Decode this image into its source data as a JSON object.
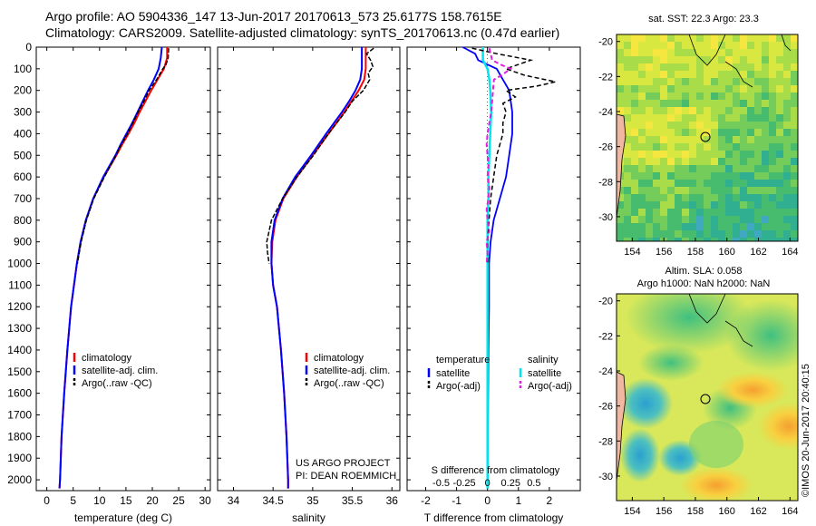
{
  "header": {
    "line1": "Argo profile: AO 5904336_147 13-Jun-2017 20170613_573 25.6177S 158.7615E",
    "line2": "Climatology: CARS2009. Satellite-adjusted climatology: synTS_20170613.nc (0.47d earlier)"
  },
  "depth_ticks": [
    "0",
    "100",
    "200",
    "300",
    "400",
    "500",
    "600",
    "700",
    "800",
    "900",
    "1000",
    "1100",
    "1200",
    "1300",
    "1400",
    "1500",
    "1600",
    "1700",
    "1800",
    "1900",
    "2000"
  ],
  "colors": {
    "climatology": "#ff0000",
    "satellite": "#0000ff",
    "argo": "#000000",
    "cyan": "#00e5ee",
    "magenta": "#e020e0"
  },
  "chart_data": [
    {
      "type": "line",
      "title": "temperature panel",
      "xlabel": "temperature (deg C)",
      "ylabel": "depth",
      "xlim": [
        -2,
        31
      ],
      "ylim": [
        2050,
        0
      ],
      "xticks": [
        "0",
        "5",
        "10",
        "15",
        "20",
        "25",
        "30"
      ],
      "legend": [
        "climatology",
        "satellite-adj. clim.",
        "Argo(..raw -QC)"
      ],
      "series": [
        {
          "name": "climatology",
          "depth": [
            0,
            50,
            100,
            150,
            200,
            250,
            300,
            350,
            400,
            450,
            500,
            600,
            700,
            800,
            900,
            1000,
            1200,
            1400,
            1600,
            1800,
            2000,
            2040
          ],
          "values": [
            22.8,
            22.8,
            22.2,
            21.0,
            19.8,
            18.7,
            17.6,
            16.6,
            15.5,
            14.3,
            13.2,
            10.8,
            8.8,
            7.4,
            6.4,
            5.7,
            4.6,
            3.9,
            3.3,
            2.8,
            2.5,
            2.4
          ]
        },
        {
          "name": "satellite",
          "depth": [
            0,
            50,
            100,
            150,
            200,
            250,
            300,
            350,
            400,
            450,
            500,
            600,
            700,
            800,
            900,
            1000,
            1200,
            1400,
            1600,
            1800,
            2000,
            2040
          ],
          "values": [
            21.8,
            21.6,
            21.2,
            20.3,
            19.2,
            18.2,
            17.2,
            16.2,
            15.1,
            14.0,
            13.0,
            10.7,
            8.8,
            7.4,
            6.4,
            5.7,
            4.6,
            3.9,
            3.3,
            2.8,
            2.5,
            2.4
          ]
        },
        {
          "name": "Argo",
          "depth": [
            5,
            50,
            80,
            100,
            150,
            200,
            250,
            300,
            350,
            400,
            450,
            500,
            600,
            700,
            800,
            900,
            1000
          ],
          "values": [
            23.1,
            23.0,
            22.6,
            22.0,
            20.8,
            19.4,
            18.4,
            17.3,
            16.3,
            15.3,
            14.1,
            13.1,
            10.9,
            8.9,
            7.5,
            6.5,
            5.8
          ]
        }
      ]
    },
    {
      "type": "line",
      "title": "salinity panel",
      "xlabel": "salinity",
      "ylabel": "depth",
      "xlim": [
        33.8,
        36.1
      ],
      "ylim": [
        2050,
        0
      ],
      "xticks": [
        "34",
        "34.5",
        "35",
        "35.5",
        "36"
      ],
      "legend": [
        "climatology",
        "satellite-adj. clim.",
        "Argo(..raw -QC)"
      ],
      "annotation": [
        "US ARGO PROJECT",
        "PI: DEAN ROEMMICH"
      ],
      "series": [
        {
          "name": "climatology",
          "depth": [
            0,
            50,
            100,
            150,
            200,
            250,
            300,
            400,
            500,
            600,
            700,
            800,
            900,
            1000,
            1100,
            1200,
            1400,
            1600,
            1800,
            2000,
            2040
          ],
          "values": [
            35.67,
            35.67,
            35.67,
            35.65,
            35.58,
            35.49,
            35.4,
            35.2,
            35.0,
            34.8,
            34.63,
            34.53,
            34.49,
            34.48,
            34.5,
            34.55,
            34.6,
            34.64,
            34.67,
            34.69,
            34.69
          ]
        },
        {
          "name": "satellite",
          "depth": [
            0,
            50,
            100,
            150,
            200,
            250,
            300,
            400,
            500,
            600,
            700,
            800,
            900,
            1000,
            1100,
            1200,
            1400,
            1600,
            1800,
            2000,
            2040
          ],
          "values": [
            35.62,
            35.62,
            35.62,
            35.6,
            35.54,
            35.46,
            35.37,
            35.17,
            34.98,
            34.78,
            34.62,
            34.52,
            34.48,
            34.48,
            34.5,
            34.55,
            34.6,
            34.64,
            34.67,
            34.69,
            34.69
          ]
        },
        {
          "name": "Argo",
          "depth": [
            5,
            30,
            60,
            90,
            120,
            150,
            200,
            250,
            300,
            400,
            500,
            600,
            700,
            800,
            850,
            900,
            950,
            1000
          ],
          "values": [
            35.77,
            35.68,
            35.73,
            35.76,
            35.7,
            35.72,
            35.64,
            35.5,
            35.41,
            35.2,
            35.01,
            34.8,
            34.62,
            34.48,
            34.45,
            34.42,
            34.43,
            34.45
          ]
        }
      ]
    },
    {
      "type": "line",
      "title": "difference panel",
      "xlabel": "T difference from climatology",
      "xlabel_top": "S difference from climatology",
      "ylabel": "depth",
      "xlim": [
        -2.6,
        3.0
      ],
      "ylim": [
        2050,
        0
      ],
      "xticks": [
        "-2",
        "-1",
        "0",
        "1",
        "2"
      ],
      "xticks_s": [
        "-0.5",
        "-0.25",
        "0",
        "0.25",
        "0.5"
      ],
      "legend_headers": [
        "temperature",
        "salinity"
      ],
      "legend": [
        "satellite",
        "Argo(-adj)",
        "satellite",
        "Argo(-adj)"
      ],
      "series": [
        {
          "name": "T satellite",
          "depth": [
            0,
            30,
            60,
            100,
            150,
            200,
            300,
            400,
            500,
            600,
            700,
            800,
            900,
            1000,
            1100,
            1200,
            1400,
            1600,
            1800,
            2000,
            2040
          ],
          "values": [
            -0.8,
            -0.4,
            -0.3,
            0.3,
            0.5,
            0.7,
            0.8,
            0.8,
            0.7,
            0.6,
            0.4,
            0.2,
            0.1,
            0.05,
            0.05,
            0.05,
            0.03,
            0.02,
            0.01,
            0,
            0
          ]
        },
        {
          "name": "S satellite",
          "depth": [
            0,
            60,
            100,
            150,
            200,
            300,
            400,
            500,
            600,
            700,
            800,
            900,
            1000,
            1200,
            1400,
            1600,
            1800,
            2000,
            2040
          ],
          "values": [
            -0.05,
            -0.05,
            0.0,
            0.02,
            0.03,
            0.04,
            0.03,
            0.02,
            0.01,
            0.01,
            0.0,
            0.0,
            0.0,
            0.0,
            0.0,
            0.0,
            0.0,
            0.0,
            0.0
          ]
        },
        {
          "name": "T Argo",
          "depth": [
            5,
            30,
            60,
            100,
            130,
            160,
            180,
            200,
            230,
            260,
            300,
            350,
            400,
            500,
            600,
            700,
            800,
            900,
            1000
          ],
          "values": [
            -0.5,
            0.3,
            1.4,
            0.6,
            1.2,
            2.2,
            1.6,
            0.6,
            0.9,
            0.5,
            0.6,
            0.5,
            0.5,
            0.3,
            0.2,
            0.1,
            0.05,
            0.0,
            0.0
          ]
        },
        {
          "name": "S Argo",
          "depth": [
            5,
            60,
            80,
            100,
            130,
            150,
            200,
            250,
            300,
            350,
            400,
            450,
            500,
            550,
            600,
            650,
            700,
            750,
            800,
            850,
            900,
            950,
            1000
          ],
          "values": [
            0.02,
            0.05,
            0.14,
            0.25,
            0.15,
            0.07,
            0.06,
            0.05,
            0.04,
            0.02,
            0.0,
            -0.01,
            0.0,
            0.01,
            0.0,
            0.02,
            0.01,
            -0.01,
            0.0,
            0.02,
            -0.01,
            0.0,
            -0.01
          ]
        }
      ]
    }
  ],
  "sst_map": {
    "title": "sat. SST: 22.3 Argo: 23.3",
    "xticks": [
      "154",
      "156",
      "158",
      "160",
      "162",
      "164"
    ],
    "yticks": [
      "-20",
      "-22",
      "-24",
      "-26",
      "-28",
      "-30"
    ]
  },
  "sla_map": {
    "title_line1": "Altim. SLA: 0.058",
    "title_line2": "Argo h1000: NaN h2000: NaN",
    "xticks": [
      "154",
      "156",
      "158",
      "160",
      "162",
      "164"
    ],
    "yticks": [
      "-20",
      "-22",
      "-24",
      "-26",
      "-28",
      "-30"
    ]
  },
  "credit": "©IMOS 20-Jun-2017 20:40:15"
}
